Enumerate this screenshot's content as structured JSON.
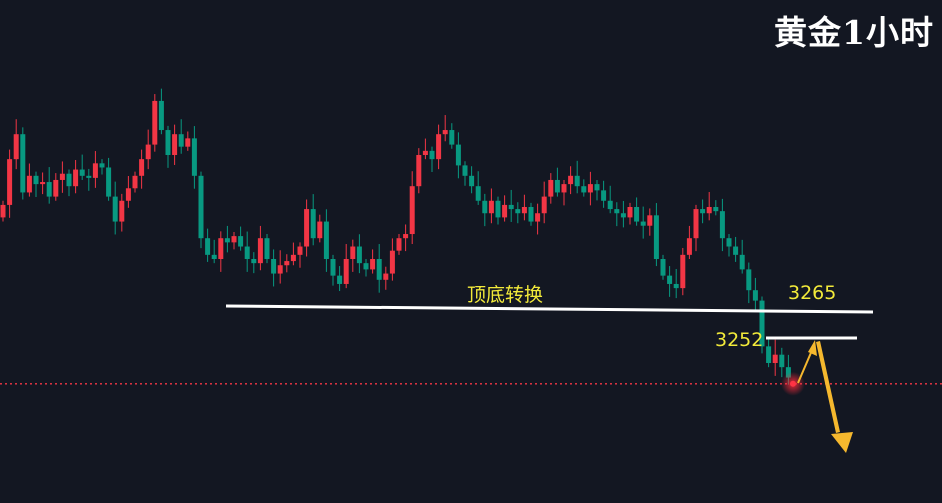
{
  "title": "黄金1小时",
  "chart_data": {
    "type": "candlestick",
    "title": "黄金1小时",
    "up_color": "#f23645",
    "down_color": "#089981",
    "open_first": 3310,
    "close": [
      3316,
      3338,
      3350,
      3322,
      3330,
      3326,
      3327,
      3320,
      3328,
      3331,
      3325,
      3333,
      3330,
      3329,
      3336,
      3334,
      3320,
      3308,
      3318,
      3324,
      3330,
      3338,
      3345,
      3366,
      3352,
      3340,
      3350,
      3344,
      3348,
      3330,
      3300,
      3292,
      3290,
      3300,
      3298,
      3301,
      3296,
      3290,
      3288,
      3300,
      3290,
      3283,
      3287,
      3289,
      3292,
      3296,
      3314,
      3300,
      3308,
      3290,
      3282,
      3278,
      3290,
      3296,
      3288,
      3285,
      3290,
      3280,
      3283,
      3294,
      3300,
      3302,
      3325,
      3340,
      3342,
      3338,
      3350,
      3352,
      3345,
      3335,
      3330,
      3325,
      3318,
      3312,
      3318,
      3310,
      3316,
      3314,
      3312,
      3315,
      3308,
      3312,
      3320,
      3328,
      3322,
      3326,
      3330,
      3325,
      3322,
      3326,
      3323,
      3318,
      3314,
      3312,
      3310,
      3315,
      3308,
      3306,
      3311,
      3290,
      3282,
      3278,
      3276,
      3292,
      3300,
      3314,
      3312,
      3315,
      3313,
      3300,
      3296,
      3292,
      3285,
      3275,
      3270,
      3248,
      3240,
      3244,
      3238,
      3233
    ],
    "current_price_line": 3230,
    "annotations": {
      "support_resistance_label": "顶底转换",
      "level_high": "3265",
      "level_low": "3252",
      "arrow_color": "#f5b82e",
      "label_color": "#f2ea3a",
      "projection": "rebound to 3252 then decline"
    }
  }
}
